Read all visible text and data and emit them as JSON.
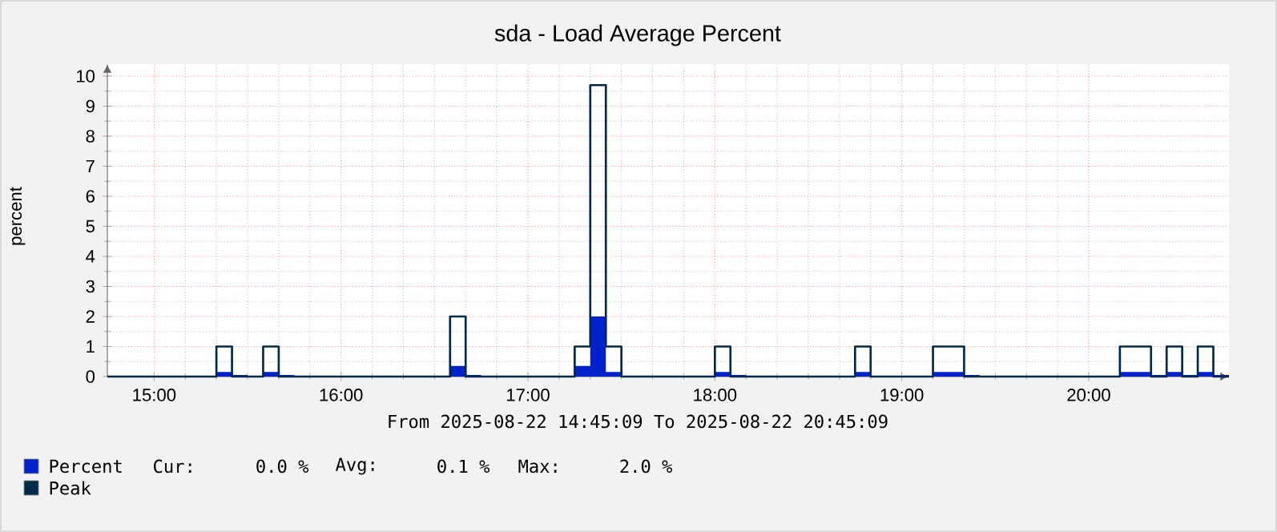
{
  "chart_data": {
    "type": "step",
    "title": "sda - Load Average Percent",
    "xlabel": "From 2025-08-22 14:45:09 To 2025-08-22 20:45:09",
    "ylabel": "percent",
    "xlim": [
      14.75,
      20.75
    ],
    "ylim": [
      0,
      10.4
    ],
    "xticks": [
      {
        "value": 15,
        "label": "15:00"
      },
      {
        "value": 16,
        "label": "16:00"
      },
      {
        "value": 17,
        "label": "17:00"
      },
      {
        "value": 18,
        "label": "18:00"
      },
      {
        "value": 19,
        "label": "19:00"
      },
      {
        "value": 20,
        "label": "20:00"
      }
    ],
    "yticks": [
      0,
      1,
      2,
      3,
      4,
      5,
      6,
      7,
      8,
      9,
      10
    ],
    "grid": true,
    "legend": "bottom left",
    "series": [
      {
        "name": "Percent",
        "type": "area",
        "color": "#0022cc",
        "x": [
          14.75,
          15.3333,
          15.4167,
          15.5,
          15.5833,
          15.6667,
          15.75,
          16.5833,
          16.6667,
          16.75,
          17.25,
          17.3333,
          17.4167,
          17.5,
          18.0,
          18.0833,
          18.1667,
          18.75,
          18.8333,
          19.1667,
          19.3333,
          19.4167,
          20.1667,
          20.3333,
          20.4167,
          20.5,
          20.5833,
          20.6667,
          20.75
        ],
        "values": [
          0,
          0.15,
          0.05,
          0,
          0.15,
          0.05,
          0,
          0.35,
          0.05,
          0,
          0.35,
          2.0,
          0.15,
          0,
          0.15,
          0.05,
          0,
          0.15,
          0,
          0.15,
          0.05,
          0,
          0.15,
          0.05,
          0.15,
          0.05,
          0.15,
          0.05,
          0.05
        ]
      },
      {
        "name": "Peak",
        "color": "#002a4a",
        "x": [
          14.75,
          15.3333,
          15.4167,
          15.5833,
          15.6667,
          16.5833,
          16.6667,
          17.25,
          17.3333,
          17.4167,
          17.5,
          18.0,
          18.0833,
          18.75,
          18.8333,
          19.1667,
          19.3333,
          20.1667,
          20.3333,
          20.4167,
          20.5,
          20.5833,
          20.6667,
          20.75
        ],
        "values": [
          0,
          1,
          0,
          1,
          0,
          2,
          0,
          1,
          9.7,
          1,
          0,
          1,
          0,
          1,
          0,
          1,
          0,
          1,
          0,
          1,
          0,
          1,
          0,
          0
        ]
      }
    ],
    "annotations": [
      "Cur:",
      "0.0 %",
      "Avg:",
      "0.1 %",
      "Max:",
      "2.0 %"
    ]
  }
}
